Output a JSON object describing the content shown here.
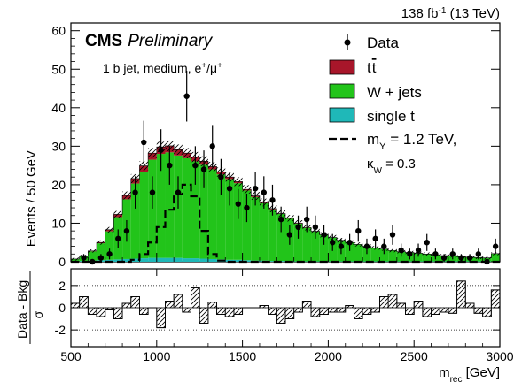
{
  "header": {
    "lumi": "138 fb",
    "lumi_sup": "-1",
    "energy": " (13 TeV)",
    "cms": "CMS",
    "preliminary": "Preliminary",
    "selection": "1 b jet, medium, e",
    "selection_sup": "+",
    "selection_mid": "/μ",
    "selection_sup2": "+"
  },
  "legend": {
    "data": "Data",
    "ttbar": "t t̅",
    "wjets": "W + jets",
    "singlet": "single t",
    "signal_l1_a": "m",
    "signal_l1_sub": "Y",
    "signal_l1_b": " = 1.2 TeV,",
    "signal_l2_a": "κ",
    "signal_l2_sub": "W",
    "signal_l2_b": " = 0.3"
  },
  "colors": {
    "ttbar": "#a8162a",
    "wjets": "#22c41a",
    "singlet": "#1fb8b8"
  },
  "axes": {
    "ylabel": "Events / 50 GeV",
    "ratio_ylabel_top": "Data - Bkg",
    "ratio_ylabel_bottom": "σ",
    "xlabel_a": "m",
    "xlabel_sub": "rec",
    "xlabel_b": " [GeV]"
  },
  "chart_data": [
    {
      "type": "bar",
      "subtype": "stacked-histogram",
      "x_bin_edges_start": 500,
      "bin_width": 50,
      "xlim": [
        500,
        3000
      ],
      "ylim": [
        0,
        62
      ],
      "yticks": [
        0,
        10,
        20,
        30,
        40,
        50,
        60
      ],
      "xticks": [
        500,
        1000,
        1500,
        2000,
        2500,
        3000
      ],
      "series": [
        {
          "name": "single t",
          "values": [
            0.1,
            0.2,
            0.3,
            0.4,
            0.5,
            0.6,
            0.7,
            0.8,
            0.9,
            1.0,
            1.0,
            1.0,
            1.0,
            0.9,
            0.9,
            0.8,
            0.7,
            0.6,
            0.5,
            0.5,
            0.4,
            0.3,
            0.3,
            0.2,
            0.2,
            0.2,
            0.1,
            0.1,
            0.1,
            0.1,
            0.1,
            0.1,
            0.1,
            0.1,
            0.1,
            0.1,
            0.1,
            0.1,
            0.1,
            0.1,
            0.1,
            0.1,
            0.1,
            0.1,
            0.1,
            0.1,
            0.1,
            0.1,
            0.1,
            0.1
          ]
        },
        {
          "name": "W + jets",
          "values": [
            0.6,
            1.2,
            2.4,
            4.4,
            7.4,
            11,
            15.5,
            19.5,
            22.5,
            25.5,
            27,
            27.4,
            26.6,
            26,
            25.2,
            24.4,
            23.3,
            22.1,
            21,
            19.9,
            18.1,
            16.5,
            14.9,
            13.4,
            12.2,
            11,
            9.8,
            8.7,
            7.8,
            6.9,
            6.2,
            5.5,
            4.9,
            4.4,
            3.9,
            3.5,
            3.2,
            2.8,
            2.5,
            2.3,
            2.1,
            1.9,
            1.7,
            1.5,
            1.4,
            1.2,
            1.1,
            1.0,
            0.9,
            2.0
          ]
        },
        {
          "name": "t t̅",
          "values": [
            0,
            0,
            0.1,
            0.2,
            0.4,
            0.7,
            1.0,
            1.3,
            1.5,
            1.7,
            1.8,
            1.7,
            1.5,
            1.3,
            1.1,
            0.9,
            0.7,
            0.6,
            0.5,
            0.4,
            0.3,
            0.3,
            0.2,
            0.2,
            0.1,
            0.1,
            0.1,
            0.1,
            0,
            0,
            0,
            0,
            0,
            0,
            0,
            0,
            0,
            0,
            0,
            0,
            0,
            0,
            0,
            0,
            0,
            0,
            0,
            0,
            0,
            0
          ]
        }
      ],
      "signal": {
        "name": "m_Y = 1.2 TeV, κ_W = 0.3",
        "values": [
          0,
          0,
          0,
          0,
          0,
          0,
          0,
          0.5,
          2,
          5,
          9,
          13.5,
          17.5,
          20,
          17,
          8,
          2,
          0.3,
          0,
          0,
          0,
          0,
          0,
          0,
          0,
          0,
          0,
          0,
          0,
          0,
          0,
          0,
          0,
          0,
          0,
          0,
          0,
          0,
          0,
          0,
          0,
          0,
          0,
          0,
          0,
          0,
          0,
          0,
          0,
          0
        ]
      },
      "data": {
        "x": [
          575,
          625,
          675,
          725,
          775,
          825,
          875,
          925,
          975,
          1025,
          1075,
          1125,
          1175,
          1225,
          1275,
          1325,
          1375,
          1425,
          1475,
          1525,
          1575,
          1625,
          1675,
          1725,
          1775,
          1825,
          1875,
          1925,
          1975,
          2025,
          2075,
          2125,
          2175,
          2225,
          2275,
          2325,
          2375,
          2425,
          2475,
          2525,
          2575,
          2625,
          2675,
          2725,
          2775,
          2825,
          2875,
          2925,
          2975
        ],
        "y": [
          1,
          0,
          1,
          2,
          6,
          8,
          18,
          31,
          18,
          29,
          25,
          18,
          43,
          25,
          24,
          30,
          22,
          19,
          15,
          14,
          19,
          18,
          16,
          11,
          7,
          9,
          11,
          9,
          7,
          5,
          4,
          5,
          8,
          4,
          6,
          4,
          7,
          3,
          2,
          3,
          5,
          2,
          1,
          2,
          1,
          1,
          2,
          0,
          4
        ],
        "err": [
          1,
          0,
          1,
          1.4,
          2.4,
          2.8,
          4.2,
          5.6,
          4.2,
          5.4,
          5,
          4.2,
          6.6,
          5,
          4.9,
          5.5,
          4.7,
          4.4,
          3.9,
          3.7,
          4.4,
          4.2,
          4,
          3.3,
          2.6,
          3,
          3.3,
          3,
          2.6,
          2.2,
          2,
          2.2,
          2.8,
          2,
          2.4,
          2,
          2.6,
          1.7,
          1.4,
          1.7,
          2.2,
          1.4,
          1,
          1.4,
          1,
          1,
          1.4,
          0,
          2
        ]
      }
    },
    {
      "type": "bar",
      "subtype": "pull-ratio",
      "ylabel": "Data - Bkg / σ",
      "ylim": [
        -3.5,
        3.5
      ],
      "yticks": [
        -2,
        0,
        2
      ],
      "x_bin_edges_start": 500,
      "bin_width": 50,
      "values": [
        0.4,
        1.0,
        -0.6,
        -0.8,
        -0.2,
        -1.0,
        0.4,
        1.0,
        -0.6,
        0.0,
        -1.8,
        0.6,
        1.2,
        -0.4,
        1.8,
        -1.4,
        0.5,
        -0.6,
        -0.8,
        -0.6,
        0.0,
        0.0,
        0.2,
        -0.6,
        -1.4,
        -1.0,
        -0.4,
        0.6,
        -0.8,
        -0.6,
        -0.4,
        -0.4,
        0.2,
        -1.0,
        -0.6,
        -0.4,
        1.0,
        1.2,
        0.4,
        -0.6,
        0.6,
        -0.8,
        -0.6,
        -0.4,
        -0.5,
        2.4,
        0.4,
        -0.5,
        -0.8,
        1.6
      ]
    }
  ]
}
